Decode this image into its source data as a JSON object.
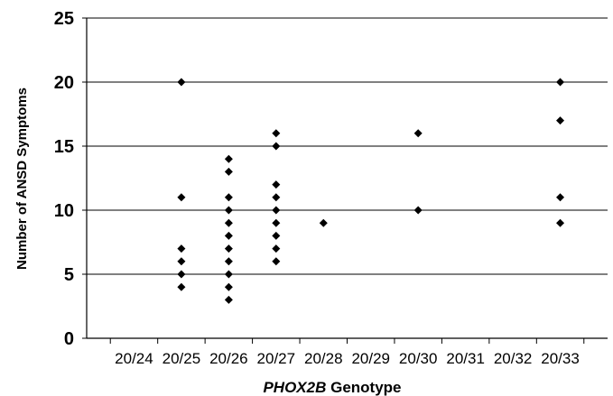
{
  "chart_data": {
    "type": "scatter",
    "title": "",
    "xlabel_italic": "PHOX2B",
    "xlabel_rest": " Genotype",
    "ylabel": "Number of ANSD Symptoms",
    "categories": [
      "20/24",
      "20/25",
      "20/26",
      "20/27",
      "20/28",
      "20/29",
      "20/30",
      "20/31",
      "20/32",
      "20/33"
    ],
    "ylim": [
      0,
      25
    ],
    "yticks": [
      "0",
      "5",
      "10",
      "15",
      "20",
      "25"
    ],
    "grid": "horizontal",
    "marker": "diamond",
    "marker_color": "#000000",
    "points": [
      {
        "x": "20/25",
        "y": 20
      },
      {
        "x": "20/25",
        "y": 11
      },
      {
        "x": "20/25",
        "y": 7
      },
      {
        "x": "20/25",
        "y": 6
      },
      {
        "x": "20/25",
        "y": 5
      },
      {
        "x": "20/25",
        "y": 4
      },
      {
        "x": "20/26",
        "y": 14
      },
      {
        "x": "20/26",
        "y": 13
      },
      {
        "x": "20/26",
        "y": 11
      },
      {
        "x": "20/26",
        "y": 10
      },
      {
        "x": "20/26",
        "y": 9
      },
      {
        "x": "20/26",
        "y": 8
      },
      {
        "x": "20/26",
        "y": 7
      },
      {
        "x": "20/26",
        "y": 6
      },
      {
        "x": "20/26",
        "y": 5
      },
      {
        "x": "20/26",
        "y": 4
      },
      {
        "x": "20/26",
        "y": 3
      },
      {
        "x": "20/27",
        "y": 16
      },
      {
        "x": "20/27",
        "y": 15
      },
      {
        "x": "20/27",
        "y": 12
      },
      {
        "x": "20/27",
        "y": 11
      },
      {
        "x": "20/27",
        "y": 10
      },
      {
        "x": "20/27",
        "y": 9
      },
      {
        "x": "20/27",
        "y": 8
      },
      {
        "x": "20/27",
        "y": 7
      },
      {
        "x": "20/27",
        "y": 6
      },
      {
        "x": "20/28",
        "y": 9
      },
      {
        "x": "20/30",
        "y": 16
      },
      {
        "x": "20/30",
        "y": 10
      },
      {
        "x": "20/33",
        "y": 20
      },
      {
        "x": "20/33",
        "y": 17
      },
      {
        "x": "20/33",
        "y": 11
      },
      {
        "x": "20/33",
        "y": 9
      }
    ]
  }
}
